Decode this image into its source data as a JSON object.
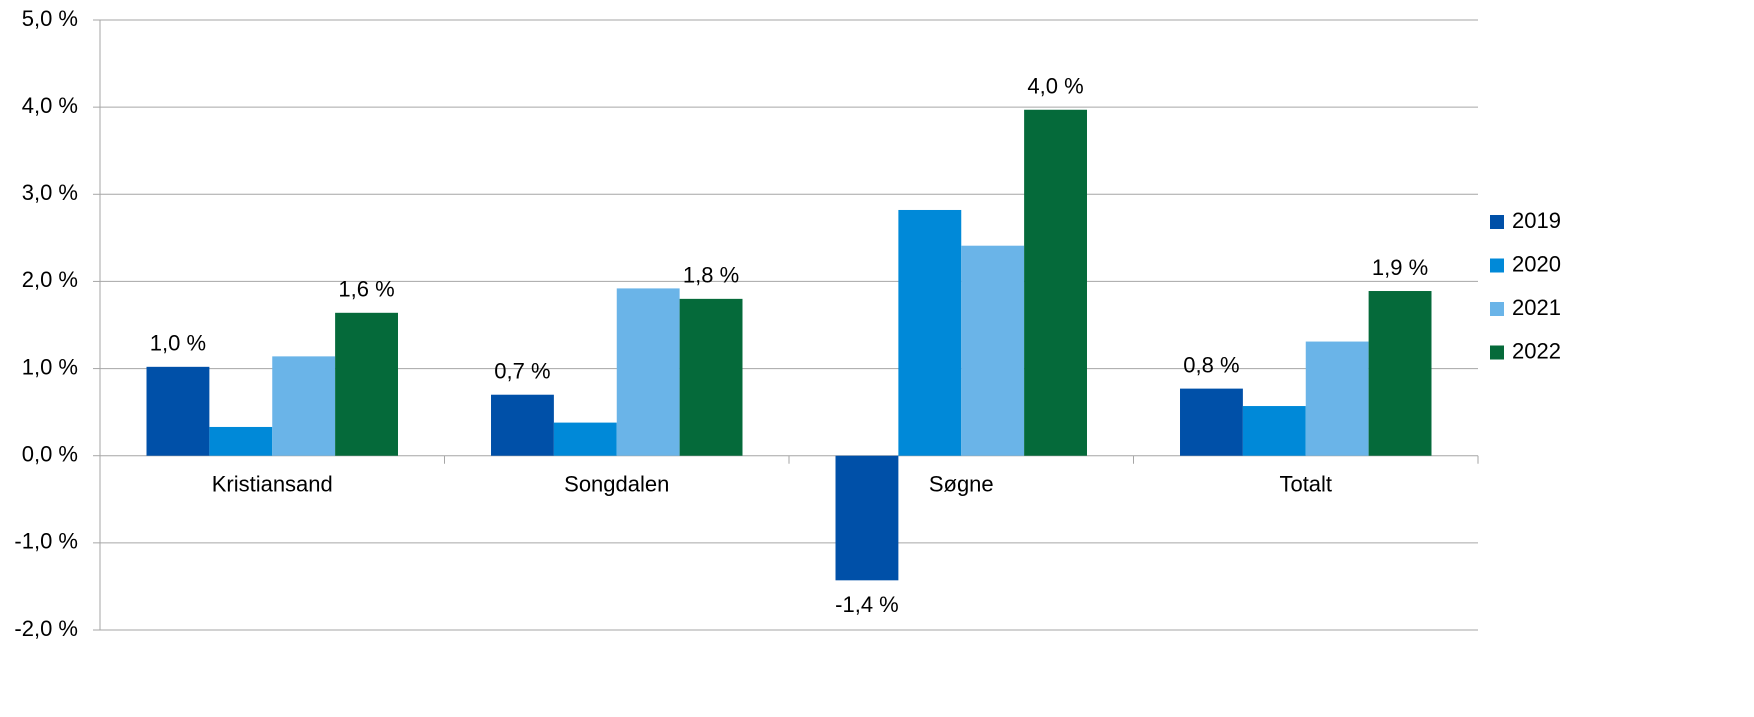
{
  "chart_data": {
    "type": "bar",
    "categories": [
      "Kristiansand",
      "Songdalen",
      "Søgne",
      "Totalt"
    ],
    "series": [
      {
        "name": "2019",
        "color": "#0050a8",
        "values": [
          1.02,
          0.7,
          -1.43,
          0.77
        ],
        "value_labels": [
          "1,0 %",
          "0,7 %",
          "-1,4 %",
          "0,8 %"
        ]
      },
      {
        "name": "2020",
        "color": "#0089d8",
        "values": [
          0.33,
          0.38,
          2.82,
          0.57
        ]
      },
      {
        "name": "2021",
        "color": "#6ab4e8",
        "values": [
          1.14,
          1.92,
          2.41,
          1.31
        ]
      },
      {
        "name": "2022",
        "color": "#056a3a",
        "values": [
          1.64,
          1.8,
          3.97,
          1.89
        ],
        "value_labels": [
          "1,6 %",
          "1,8 %",
          "4,0 %",
          "1,9 %"
        ]
      }
    ],
    "ylim": [
      -2,
      5
    ],
    "yticks": [
      {
        "value": -2,
        "label": "-2,0 %"
      },
      {
        "value": -1,
        "label": "-1,0 %"
      },
      {
        "value": 0,
        "label": "0,0 %"
      },
      {
        "value": 1,
        "label": "1,0 %"
      },
      {
        "value": 2,
        "label": "2,0 %"
      },
      {
        "value": 3,
        "label": "3,0 %"
      },
      {
        "value": 4,
        "label": "4,0 %"
      },
      {
        "value": 5,
        "label": "5,0 %"
      }
    ],
    "grid": true,
    "legend": "right"
  }
}
